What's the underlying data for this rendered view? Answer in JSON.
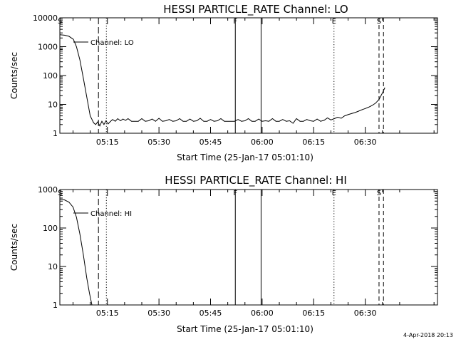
{
  "chart_data": [
    {
      "type": "line",
      "title": "HESSI PARTICLE_RATE Channel: LO",
      "xlabel": "Start Time (25-Jan-17 05:01:10)",
      "ylabel": "Counts/sec",
      "y_scale": "log",
      "ylim": [
        1,
        10000
      ],
      "y_tick_labels": [
        "1",
        "10",
        "100",
        "1000",
        "10000"
      ],
      "x_tick_labels": [
        "05:15",
        "05:30",
        "05:45",
        "06:00",
        "06:15",
        "06:30"
      ],
      "x_tick_minutes": [
        15,
        30,
        45,
        60,
        75,
        90
      ],
      "xlim_minutes": [
        1.17,
        111
      ],
      "legend": "Channel: LO",
      "markers": [
        {
          "label": "S",
          "minute": 1.17,
          "style": "dashed"
        },
        {
          "label": "",
          "minute": 12.4,
          "style": "longdash"
        },
        {
          "label": "",
          "minute": 14.7,
          "style": "dotted"
        },
        {
          "label": "F",
          "minute": 52.2,
          "style": "solid"
        },
        {
          "label": "",
          "minute": 59.7,
          "style": "solid"
        },
        {
          "label": "E",
          "minute": 80.9,
          "style": "dotted"
        },
        {
          "label": "S",
          "minute": 94.0,
          "style": "dashed"
        },
        {
          "label": "",
          "minute": 95.3,
          "style": "dashed"
        }
      ],
      "series": [
        {
          "x": [
            1.2,
            2.5,
            3.8,
            5.1,
            6.0,
            7.0,
            8.0,
            9.0,
            10.0,
            11.0,
            11.6,
            12.2,
            12.8,
            13.4,
            14.0,
            14.6,
            15.2,
            15.8,
            16.5,
            17.3,
            18.0,
            18.8,
            19.5,
            20.3,
            21.0,
            22.0,
            23.0,
            24.0,
            25.0,
            26.0,
            27.0,
            28.0,
            29.0,
            30.0,
            31.0,
            32.0,
            33.0,
            34.0,
            35.0,
            36.0,
            37.0,
            38.0,
            39.0,
            40.0,
            41.0,
            42.0,
            43.0,
            44.0,
            45.0,
            46.0,
            47.0,
            48.0,
            49.0,
            50.0,
            51.0,
            52.0,
            53.0,
            54.0,
            55.0,
            56.0,
            57.0,
            58.0,
            59.0,
            60.0,
            61.0,
            62.0,
            63.0,
            64.0,
            65.0,
            66.0,
            67.0,
            68.0,
            69.0,
            70.0,
            71.0,
            72.0,
            73.0,
            74.0,
            75.0,
            76.0,
            77.0,
            78.0,
            79.0,
            80.0,
            81.0,
            82.0,
            83.0,
            84.0,
            85.0,
            86.0,
            87.0,
            88.0,
            89.0,
            90.0,
            91.0,
            92.0,
            93.0,
            94.0,
            95.0,
            95.7
          ],
          "y": [
            2600,
            2500,
            2300,
            1800,
            1000,
            350,
            80,
            18,
            4,
            2.3,
            2.0,
            2.5,
            1.8,
            2.6,
            2.0,
            2.7,
            2.1,
            2.5,
            3.0,
            2.6,
            3.2,
            2.7,
            3.1,
            2.8,
            3.2,
            2.6,
            2.6,
            2.6,
            3.2,
            2.6,
            2.7,
            3.1,
            2.6,
            3.3,
            2.6,
            2.7,
            3.0,
            2.6,
            2.7,
            3.2,
            2.6,
            2.6,
            3.1,
            2.6,
            2.7,
            3.3,
            2.6,
            2.6,
            3.0,
            2.6,
            2.7,
            3.2,
            2.6,
            2.6,
            2.6,
            2.6,
            3.0,
            2.6,
            2.7,
            3.2,
            2.6,
            2.6,
            3.1,
            2.6,
            2.7,
            2.6,
            3.2,
            2.6,
            2.6,
            3.0,
            2.6,
            2.7,
            2.2,
            3.2,
            2.6,
            2.6,
            3.0,
            2.7,
            2.6,
            3.1,
            2.6,
            2.8,
            3.4,
            2.9,
            3.2,
            3.6,
            3.3,
            4.0,
            4.4,
            4.8,
            5.2,
            5.8,
            6.5,
            7.2,
            8.0,
            9.2,
            11,
            15,
            25,
            38
          ]
        }
      ]
    },
    {
      "type": "line",
      "title": "HESSI PARTICLE_RATE Channel: HI",
      "xlabel": "Start Time (25-Jan-17 05:01:10)",
      "ylabel": "Counts/sec",
      "y_scale": "log",
      "ylim": [
        1,
        1000
      ],
      "y_tick_labels": [
        "1",
        "10",
        "100",
        "1000"
      ],
      "x_tick_labels": [
        "05:15",
        "05:30",
        "05:45",
        "06:00",
        "06:15",
        "06:30"
      ],
      "x_tick_minutes": [
        15,
        30,
        45,
        60,
        75,
        90
      ],
      "xlim_minutes": [
        1.17,
        111
      ],
      "legend": "Channel: HI",
      "markers": [
        {
          "label": "S",
          "minute": 1.17,
          "style": "dashed"
        },
        {
          "label": "",
          "minute": 12.4,
          "style": "longdash"
        },
        {
          "label": "",
          "minute": 14.7,
          "style": "dotted"
        },
        {
          "label": "F",
          "minute": 52.2,
          "style": "solid"
        },
        {
          "label": "",
          "minute": 59.7,
          "style": "solid"
        },
        {
          "label": "E",
          "minute": 80.9,
          "style": "dotted"
        },
        {
          "label": "S",
          "minute": 94.0,
          "style": "dashed"
        },
        {
          "label": "",
          "minute": 95.3,
          "style": "dashed"
        }
      ],
      "series": [
        {
          "x": [
            1.2,
            2.5,
            3.8,
            5.0,
            6.0,
            7.0,
            8.0,
            9.0,
            9.8,
            10.5
          ],
          "y": [
            560,
            540,
            470,
            350,
            190,
            70,
            20,
            5,
            2,
            1
          ]
        }
      ]
    }
  ],
  "footer": {
    "timestamp": "4-Apr-2018 20:13"
  }
}
